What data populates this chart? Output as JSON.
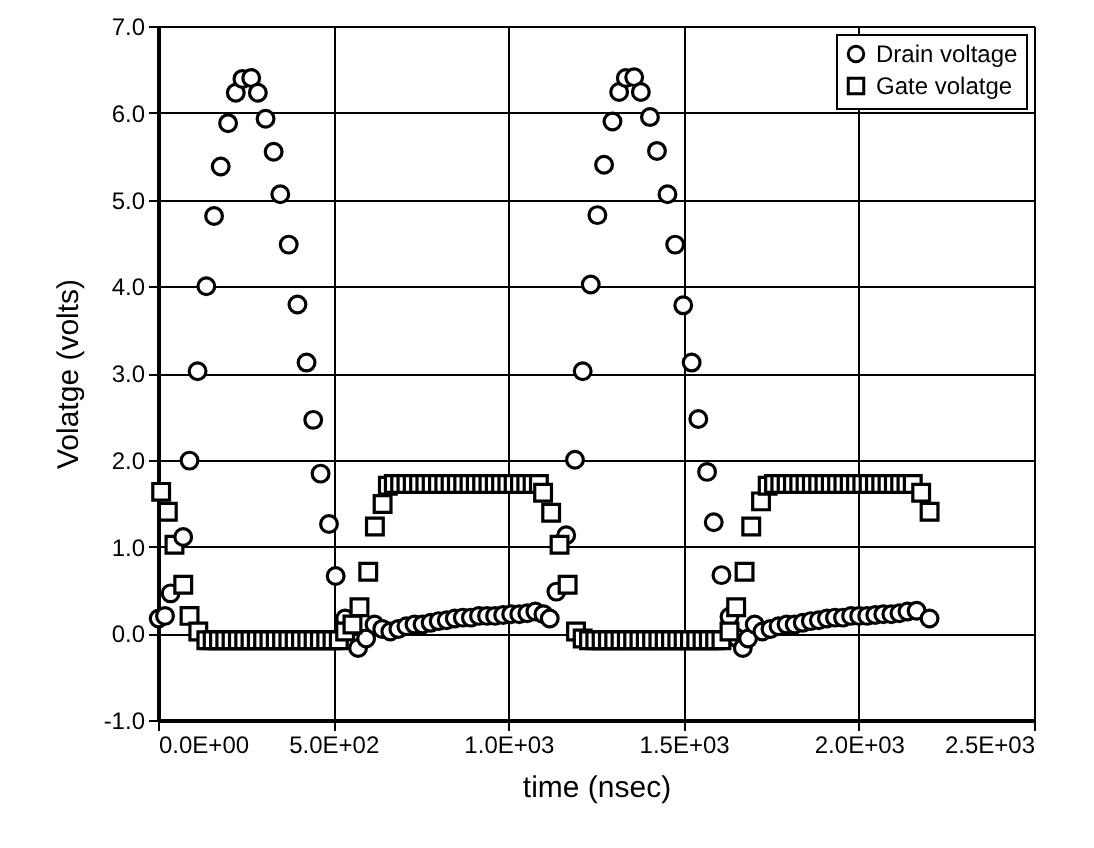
{
  "chart_data": {
    "type": "scatter",
    "xlabel": "time (nsec)",
    "ylabel": "Volatge (volts)",
    "xlim": [
      0,
      2500
    ],
    "ylim": [
      -1,
      7
    ],
    "xticks": [
      {
        "value": 0,
        "label": "0.0E+00"
      },
      {
        "value": 500,
        "label": "5.0E+02"
      },
      {
        "value": 1000,
        "label": "1.0E+03"
      },
      {
        "value": 1500,
        "label": "1.5E+03"
      },
      {
        "value": 2000,
        "label": "2.0E+03"
      },
      {
        "value": 2500,
        "label": "2.5E+03"
      }
    ],
    "yticks": [
      {
        "value": -1,
        "label": "-1.0"
      },
      {
        "value": 0,
        "label": "0.0"
      },
      {
        "value": 1,
        "label": "1.0"
      },
      {
        "value": 2,
        "label": "2.0"
      },
      {
        "value": 3,
        "label": "3.0"
      },
      {
        "value": 4,
        "label": "4.0"
      },
      {
        "value": 5,
        "label": "5.0"
      },
      {
        "value": 6,
        "label": "6.0"
      },
      {
        "value": 7,
        "label": "7.0"
      }
    ],
    "grid": true,
    "legend": "top right",
    "series": [
      {
        "name": "Drain voltage",
        "color": "#000000",
        "marker": "circle",
        "x": [
          2,
          20,
          36,
          72,
          90,
          113,
          138,
          160,
          179,
          200,
          222,
          241,
          266,
          285,
          307,
          330,
          349,
          373,
          398,
          424,
          443,
          464,
          488,
          507,
          534,
          552,
          571,
          594,
          618,
          640,
          663,
          686,
          709,
          732,
          755,
          778,
          801,
          824,
          847,
          870,
          893,
          916,
          939,
          962,
          985,
          1008,
          1031,
          1054,
          1077,
          1100,
          1118,
          1137,
          1165,
          1190,
          1212,
          1235,
          1254,
          1273,
          1297,
          1316,
          1335,
          1359,
          1378,
          1404,
          1424,
          1454,
          1476,
          1499,
          1523,
          1542,
          1567,
          1586,
          1608,
          1631,
          1650,
          1669,
          1684,
          1703,
          1725,
          1748,
          1771,
          1794,
          1817,
          1840,
          1863,
          1886,
          1909,
          1932,
          1955,
          1978,
          2001,
          2024,
          2047,
          2070,
          2093,
          2116,
          2139,
          2165,
          2202
        ],
        "values": [
          0.17,
          0.2,
          0.46,
          1.11,
          1.99,
          3.02,
          4.0,
          4.81,
          5.38,
          5.88,
          6.23,
          6.39,
          6.4,
          6.23,
          5.93,
          5.55,
          5.06,
          4.48,
          3.79,
          3.12,
          2.46,
          1.84,
          1.26,
          0.66,
          0.17,
          null,
          -0.17,
          -0.06,
          0.1,
          0.05,
          0.02,
          0.05,
          0.08,
          0.1,
          0.1,
          0.12,
          0.14,
          0.15,
          0.17,
          0.18,
          0.18,
          0.2,
          0.2,
          0.2,
          0.21,
          0.22,
          0.22,
          0.23,
          0.25,
          0.22,
          0.17,
          0.48,
          1.13,
          2.0,
          3.02,
          4.02,
          4.82,
          5.4,
          5.9,
          6.24,
          6.4,
          6.41,
          6.24,
          5.95,
          5.56,
          5.06,
          4.48,
          3.78,
          3.12,
          2.47,
          1.86,
          1.28,
          0.67,
          0.19,
          -0.05,
          -0.17,
          -0.06,
          0.1,
          0.02,
          0.05,
          0.08,
          0.1,
          0.1,
          0.12,
          0.14,
          0.15,
          0.17,
          0.18,
          0.18,
          0.2,
          0.2,
          0.2,
          0.21,
          0.22,
          0.22,
          0.23,
          0.25,
          0.26,
          0.17
        ]
      },
      {
        "name": "Gate volatge",
        "color": "#000000",
        "marker": "square",
        "x": [
          9,
          28,
          47,
          72,
          90,
          115,
          138,
          156,
          174,
          192,
          210,
          228,
          246,
          264,
          282,
          300,
          318,
          336,
          354,
          372,
          390,
          408,
          426,
          444,
          462,
          480,
          498,
          516,
          534,
          555,
          575,
          600,
          619,
          641,
          656,
          673,
          691,
          709,
          727,
          745,
          763,
          781,
          799,
          817,
          835,
          853,
          871,
          889,
          907,
          925,
          943,
          961,
          979,
          997,
          1015,
          1033,
          1051,
          1069,
          1087,
          1099,
          1122,
          1146,
          1169,
          1193,
          1212,
          1230,
          1248,
          1266,
          1284,
          1302,
          1320,
          1338,
          1356,
          1374,
          1392,
          1410,
          1428,
          1446,
          1464,
          1482,
          1500,
          1518,
          1536,
          1554,
          1572,
          1590,
          1608,
          1631,
          1650,
          1674,
          1693,
          1721,
          1740,
          1758,
          1776,
          1794,
          1812,
          1830,
          1848,
          1866,
          1884,
          1902,
          1920,
          1938,
          1956,
          1974,
          1992,
          2010,
          2028,
          2046,
          2064,
          2082,
          2100,
          2118,
          2136,
          2154,
          2178,
          2202
        ],
        "values": [
          1.63,
          1.4,
          1.02,
          0.56,
          0.2,
          0.02,
          -0.08,
          -0.08,
          -0.08,
          -0.08,
          -0.08,
          -0.08,
          -0.08,
          -0.08,
          -0.08,
          -0.08,
          -0.08,
          -0.08,
          -0.08,
          -0.08,
          -0.08,
          -0.08,
          -0.08,
          -0.08,
          -0.08,
          -0.08,
          -0.08,
          -0.08,
          0.02,
          0.1,
          0.3,
          0.71,
          1.23,
          1.49,
          1.7,
          1.72,
          1.72,
          1.72,
          1.72,
          1.72,
          1.72,
          1.72,
          1.72,
          1.72,
          1.72,
          1.72,
          1.72,
          1.72,
          1.72,
          1.72,
          1.72,
          1.72,
          1.72,
          1.72,
          1.72,
          1.72,
          1.72,
          1.72,
          1.72,
          1.62,
          1.39,
          1.02,
          0.56,
          0.02,
          -0.06,
          -0.08,
          -0.08,
          -0.08,
          -0.08,
          -0.08,
          -0.08,
          -0.08,
          -0.08,
          -0.08,
          -0.08,
          -0.08,
          -0.08,
          -0.08,
          -0.08,
          -0.08,
          -0.08,
          -0.08,
          -0.08,
          -0.08,
          -0.08,
          -0.08,
          -0.08,
          0.02,
          0.3,
          0.71,
          1.23,
          1.52,
          1.7,
          1.72,
          1.72,
          1.72,
          1.72,
          1.72,
          1.72,
          1.72,
          1.72,
          1.72,
          1.72,
          1.72,
          1.72,
          1.72,
          1.72,
          1.72,
          1.72,
          1.72,
          1.72,
          1.72,
          1.72,
          1.72,
          1.72,
          1.72,
          1.62,
          1.4
        ]
      }
    ]
  }
}
